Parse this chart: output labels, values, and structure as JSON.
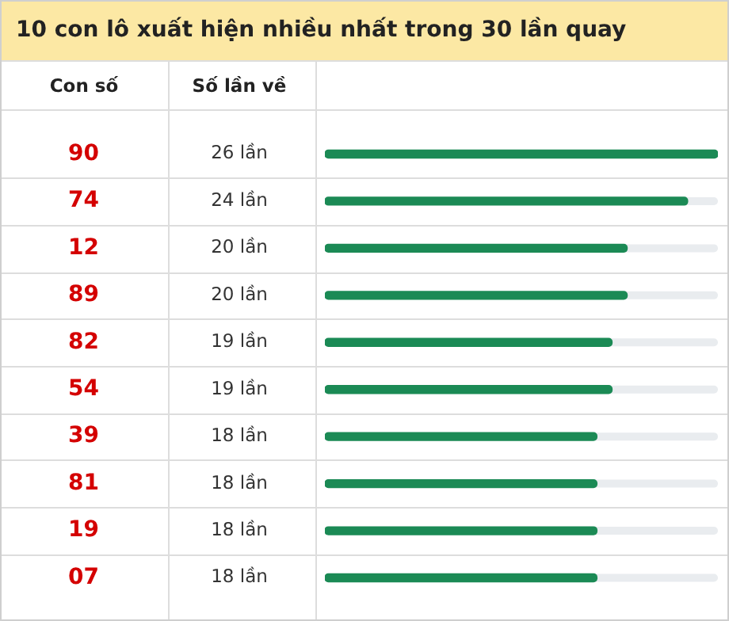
{
  "chart_data": {
    "type": "bar",
    "orientation": "horizontal",
    "title": "10 con lô xuất hiện nhiều nhất trong 30 lần quay",
    "annotations": [
      "Con số",
      "Số lần về"
    ],
    "categories": [
      "90",
      "74",
      "12",
      "89",
      "82",
      "54",
      "39",
      "81",
      "19",
      "07"
    ],
    "values": [
      26,
      24,
      20,
      20,
      19,
      19,
      18,
      18,
      18,
      18
    ],
    "value_labels": [
      "26 lần",
      "24 lần",
      "20 lần",
      "20 lần",
      "19 lần",
      "19 lần",
      "18 lần",
      "18 lần",
      "18 lần",
      "18 lần"
    ],
    "color": "#1b8a55",
    "xlim": [
      0,
      26
    ],
    "tick_labels": "y",
    "grid": false,
    "legend": false
  }
}
